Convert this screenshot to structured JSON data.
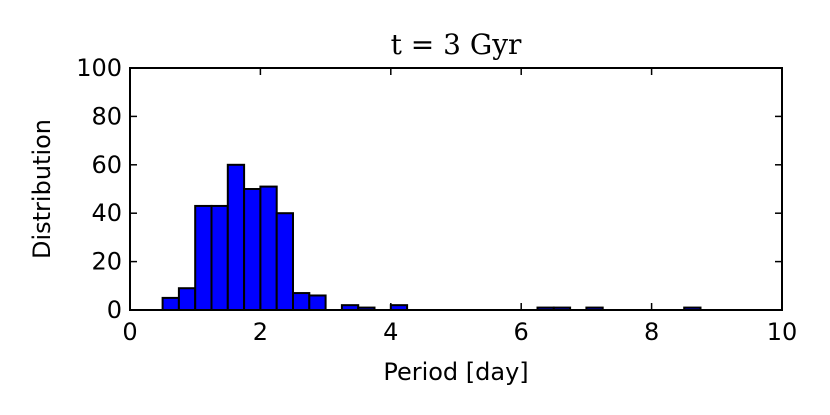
{
  "chart_data": {
    "type": "bar",
    "title": "t = 3 Gyr",
    "xlabel": "Period [day]",
    "ylabel": "Distribution",
    "xlim": [
      0,
      10
    ],
    "ylim": [
      0,
      100
    ],
    "xticks": [
      0,
      2,
      4,
      6,
      8,
      10
    ],
    "yticks": [
      0,
      20,
      40,
      60,
      80,
      100
    ],
    "bar_color": "#0000ff",
    "edge_color": "#000000",
    "grid": false,
    "bins": [
      {
        "x0": 0.5,
        "x1": 0.75,
        "value": 5
      },
      {
        "x0": 0.75,
        "x1": 1.0,
        "value": 9
      },
      {
        "x0": 1.0,
        "x1": 1.25,
        "value": 43
      },
      {
        "x0": 1.25,
        "x1": 1.5,
        "value": 43
      },
      {
        "x0": 1.5,
        "x1": 1.75,
        "value": 60
      },
      {
        "x0": 1.75,
        "x1": 2.0,
        "value": 50
      },
      {
        "x0": 2.0,
        "x1": 2.25,
        "value": 51
      },
      {
        "x0": 2.25,
        "x1": 2.5,
        "value": 40
      },
      {
        "x0": 2.5,
        "x1": 2.75,
        "value": 7
      },
      {
        "x0": 2.75,
        "x1": 3.0,
        "value": 6
      },
      {
        "x0": 3.25,
        "x1": 3.5,
        "value": 2
      },
      {
        "x0": 3.5,
        "x1": 3.75,
        "value": 1
      },
      {
        "x0": 4.0,
        "x1": 4.25,
        "value": 2
      },
      {
        "x0": 6.25,
        "x1": 6.5,
        "value": 1
      },
      {
        "x0": 6.5,
        "x1": 6.75,
        "value": 1
      },
      {
        "x0": 7.0,
        "x1": 7.25,
        "value": 1
      },
      {
        "x0": 8.5,
        "x1": 8.75,
        "value": 1
      }
    ]
  }
}
